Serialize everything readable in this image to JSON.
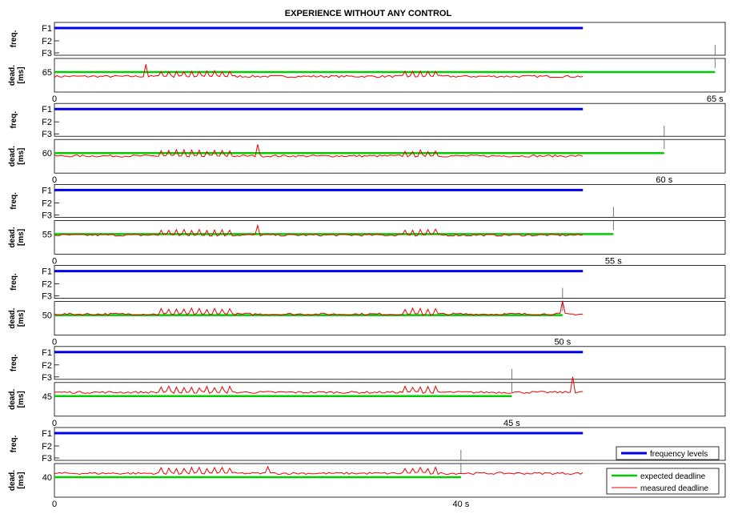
{
  "title": "EXPERIENCE WITHOUT ANY CONTROL",
  "colors": {
    "frequency": "#0000ee",
    "expected": "#00cc00",
    "measured": "#ee0000",
    "axes": "#000000",
    "marker": "#555555"
  },
  "chart_data": {
    "type": "line",
    "title": "EXPERIENCE WITHOUT ANY CONTROL",
    "freq_ylabel": "freq.",
    "dead_ylabel": "dead.\n[ms]",
    "freq_levels": [
      "F1",
      "F2",
      "F3"
    ],
    "x_origin_label": "0",
    "xlim": [
      0,
      66
    ],
    "run_end_s": 52,
    "legend": {
      "frequency": "frequency levels",
      "expected": "expected deadline",
      "measured": "measured deadline"
    },
    "experiments": [
      {
        "deadline_ms": 65,
        "deadline_label": "65",
        "end_label": "65 s",
        "end_s": 65,
        "freq_level": "F1",
        "expected_deadline_ms": 65,
        "measured_mean_ms": 64.1,
        "peak_ms": 66.6,
        "peak_at_s": 9
      },
      {
        "deadline_ms": 60,
        "deadline_label": "60",
        "end_label": "60 s",
        "end_s": 60,
        "freq_level": "F1",
        "expected_deadline_ms": 60,
        "measured_mean_ms": 59.4,
        "peak_ms": 61.8,
        "peak_at_s": 20
      },
      {
        "deadline_ms": 55,
        "deadline_label": "55",
        "end_label": "55 s",
        "end_s": 55,
        "freq_level": "F1",
        "expected_deadline_ms": 55,
        "measured_mean_ms": 54.8,
        "peak_ms": 56.8,
        "peak_at_s": 20
      },
      {
        "deadline_ms": 50,
        "deadline_label": "50",
        "end_label": "50 s",
        "end_s": 50,
        "freq_level": "F1",
        "expected_deadline_ms": 50,
        "measured_mean_ms": 50.2,
        "peak_ms": 53.0,
        "peak_at_s": 50
      },
      {
        "deadline_ms": 45,
        "deadline_label": "45",
        "end_label": "45 s",
        "end_s": 45,
        "freq_level": "F1",
        "expected_deadline_ms": 45,
        "measured_mean_ms": 45.8,
        "peak_ms": 49.0,
        "peak_at_s": 51
      },
      {
        "deadline_ms": 40,
        "deadline_label": "40",
        "end_label": "40 s",
        "end_s": 40,
        "freq_level": "F1",
        "expected_deadline_ms": 40,
        "measured_mean_ms": 40.8,
        "peak_ms": 42.2,
        "peak_at_s": 21
      }
    ]
  }
}
